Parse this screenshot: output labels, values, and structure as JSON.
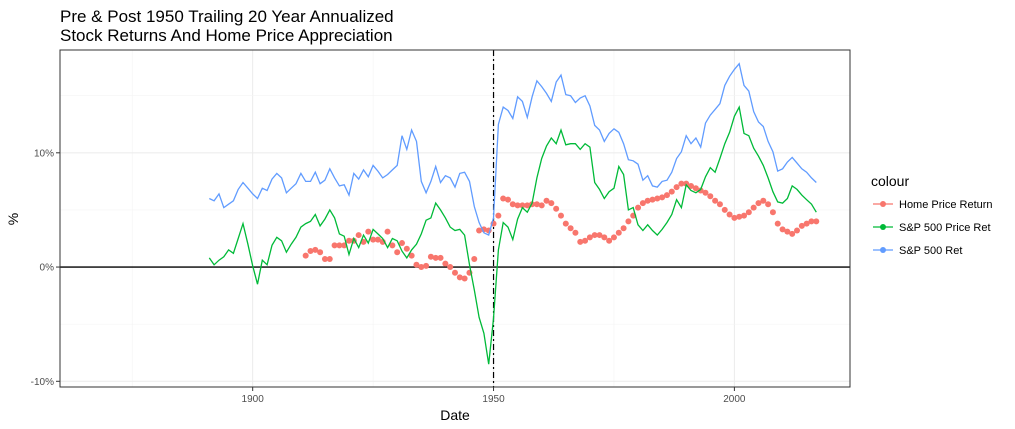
{
  "chart_data": {
    "type": "line",
    "title_line1": "Pre & Post 1950 Trailing 20 Year Annualized",
    "title_line2": "Stock Returns And Home Price Appreciation",
    "xlabel": "Date",
    "ylabel": "%",
    "xlim": [
      1860,
      2024
    ],
    "ylim": [
      -10.5,
      19
    ],
    "x_ticks": [
      1900,
      1950,
      2000
    ],
    "x_tick_labels": [
      "1900",
      "1950",
      "2000"
    ],
    "y_ticks": [
      -10,
      0,
      10
    ],
    "y_tick_labels": [
      "-10%",
      "0%",
      "10%"
    ],
    "grid": true,
    "legend_position": "right",
    "legend_title": "colour",
    "reference_lines": {
      "horizontal_y": 0,
      "vertical_dashed_x": 1950
    },
    "series": [
      {
        "name": "Home Price Return",
        "style": "points",
        "color": "#F8766D",
        "x": [
          1911,
          1912,
          1913,
          1914,
          1915,
          1916,
          1917,
          1918,
          1919,
          1920,
          1921,
          1922,
          1923,
          1924,
          1925,
          1926,
          1927,
          1928,
          1929,
          1930,
          1931,
          1932,
          1933,
          1934,
          1935,
          1936,
          1937,
          1938,
          1939,
          1940,
          1941,
          1942,
          1943,
          1944,
          1945,
          1946,
          1947,
          1948,
          1949,
          1950,
          1951,
          1952,
          1953,
          1954,
          1955,
          1956,
          1957,
          1958,
          1959,
          1960,
          1961,
          1962,
          1963,
          1964,
          1965,
          1966,
          1967,
          1968,
          1969,
          1970,
          1971,
          1972,
          1973,
          1974,
          1975,
          1976,
          1977,
          1978,
          1979,
          1980,
          1981,
          1982,
          1983,
          1984,
          1985,
          1986,
          1987,
          1988,
          1989,
          1990,
          1991,
          1992,
          1993,
          1994,
          1995,
          1996,
          1997,
          1998,
          1999,
          2000,
          2001,
          2002,
          2003,
          2004,
          2005,
          2006,
          2007,
          2008,
          2009,
          2010,
          2011,
          2012,
          2013,
          2014,
          2015,
          2016,
          2017
        ],
        "y": [
          1.0,
          1.4,
          1.5,
          1.3,
          0.7,
          0.7,
          1.9,
          1.9,
          1.9,
          2.3,
          2.3,
          2.8,
          2.2,
          3.1,
          2.4,
          2.4,
          2.2,
          3.1,
          1.9,
          1.3,
          2.1,
          1.6,
          1.0,
          0.2,
          0.0,
          0.1,
          0.9,
          0.8,
          0.8,
          0.3,
          0.0,
          -0.5,
          -0.9,
          -1.0,
          -0.5,
          0.7,
          3.2,
          3.3,
          3.2,
          3.8,
          4.5,
          6.0,
          5.9,
          5.5,
          5.4,
          5.4,
          5.4,
          5.5,
          5.5,
          5.4,
          5.8,
          5.6,
          5.1,
          4.5,
          3.8,
          3.4,
          3.0,
          2.2,
          2.3,
          2.6,
          2.8,
          2.8,
          2.6,
          2.3,
          2.6,
          3.0,
          3.4,
          4.0,
          4.5,
          5.2,
          5.6,
          5.8,
          5.9,
          6.0,
          6.1,
          6.3,
          6.6,
          7.0,
          7.3,
          7.3,
          7.1,
          6.9,
          6.7,
          6.5,
          6.2,
          5.8,
          5.5,
          5.0,
          4.6,
          4.3,
          4.4,
          4.5,
          4.8,
          5.2,
          5.6,
          5.8,
          5.5,
          4.8,
          3.8,
          3.3,
          3.1,
          2.9,
          3.2,
          3.6,
          3.8,
          4.0,
          4.0
        ]
      },
      {
        "name": "S&P 500 Price Ret",
        "style": "line",
        "color": "#00BA38",
        "x": [
          1891,
          1892,
          1893,
          1894,
          1895,
          1896,
          1897,
          1898,
          1899,
          1900,
          1901,
          1902,
          1903,
          1904,
          1905,
          1906,
          1907,
          1908,
          1909,
          1910,
          1911,
          1912,
          1913,
          1914,
          1915,
          1916,
          1917,
          1918,
          1919,
          1920,
          1921,
          1922,
          1923,
          1924,
          1925,
          1926,
          1927,
          1928,
          1929,
          1930,
          1931,
          1932,
          1933,
          1934,
          1935,
          1936,
          1937,
          1938,
          1939,
          1940,
          1941,
          1942,
          1943,
          1944,
          1945,
          1946,
          1947,
          1948,
          1949,
          1950,
          1951,
          1952,
          1953,
          1954,
          1955,
          1956,
          1957,
          1958,
          1959,
          1960,
          1961,
          1962,
          1963,
          1964,
          1965,
          1966,
          1967,
          1968,
          1969,
          1970,
          1971,
          1972,
          1973,
          1974,
          1975,
          1976,
          1977,
          1978,
          1979,
          1980,
          1981,
          1982,
          1983,
          1984,
          1985,
          1986,
          1987,
          1988,
          1989,
          1990,
          1991,
          1992,
          1993,
          1994,
          1995,
          1996,
          1997,
          1998,
          1999,
          2000,
          2001,
          2002,
          2003,
          2004,
          2005,
          2006,
          2007,
          2008,
          2009,
          2010,
          2011,
          2012,
          2013,
          2014,
          2015,
          2016,
          2017
        ],
        "y": [
          0.8,
          0.2,
          0.6,
          0.9,
          1.5,
          1.2,
          2.5,
          3.8,
          2.0,
          0.1,
          -1.5,
          0.6,
          0.2,
          1.9,
          2.6,
          2.3,
          1.3,
          2.0,
          2.6,
          3.5,
          3.8,
          4.0,
          4.6,
          3.6,
          4.2,
          5.0,
          4.3,
          2.9,
          2.7,
          1.1,
          2.5,
          1.7,
          2.8,
          2.1,
          3.3,
          2.9,
          2.5,
          1.7,
          2.5,
          2.3,
          1.4,
          0.8,
          1.5,
          2.0,
          2.9,
          4.1,
          4.3,
          5.6,
          5.0,
          4.3,
          3.5,
          3.2,
          3.3,
          2.8,
          0.2,
          -2.0,
          -4.4,
          -5.8,
          -8.5,
          -4.5,
          1.5,
          3.9,
          3.5,
          2.4,
          4.2,
          5.2,
          4.8,
          5.6,
          7.8,
          9.5,
          10.6,
          11.3,
          10.8,
          12.0,
          10.7,
          10.8,
          10.8,
          10.3,
          10.8,
          10.5,
          7.4,
          6.8,
          6.0,
          6.6,
          6.9,
          8.8,
          8.1,
          5.0,
          5.2,
          3.7,
          3.2,
          3.7,
          3.2,
          2.8,
          3.3,
          3.9,
          4.6,
          5.9,
          5.2,
          7.2,
          6.7,
          6.5,
          6.8,
          7.9,
          8.7,
          8.3,
          9.5,
          10.8,
          11.8,
          13.2,
          14.0,
          11.7,
          11.5,
          10.4,
          9.7,
          8.9,
          7.8,
          6.6,
          5.7,
          5.6,
          6.0,
          7.1,
          6.8,
          6.3,
          5.9,
          5.5,
          4.8
        ]
      },
      {
        "name": "S&P 500 Ret",
        "style": "line",
        "color": "#619CFF",
        "x": [
          1891,
          1892,
          1893,
          1894,
          1895,
          1896,
          1897,
          1898,
          1899,
          1900,
          1901,
          1902,
          1903,
          1904,
          1905,
          1906,
          1907,
          1908,
          1909,
          1910,
          1911,
          1912,
          1913,
          1914,
          1915,
          1916,
          1917,
          1918,
          1919,
          1920,
          1921,
          1922,
          1923,
          1924,
          1925,
          1926,
          1927,
          1928,
          1929,
          1930,
          1931,
          1932,
          1933,
          1934,
          1935,
          1936,
          1937,
          1938,
          1939,
          1940,
          1941,
          1942,
          1943,
          1944,
          1945,
          1946,
          1947,
          1948,
          1949,
          1950,
          1951,
          1952,
          1953,
          1954,
          1955,
          1956,
          1957,
          1958,
          1959,
          1960,
          1961,
          1962,
          1963,
          1964,
          1965,
          1966,
          1967,
          1968,
          1969,
          1970,
          1971,
          1972,
          1973,
          1974,
          1975,
          1976,
          1977,
          1978,
          1979,
          1980,
          1981,
          1982,
          1983,
          1984,
          1985,
          1986,
          1987,
          1988,
          1989,
          1990,
          1991,
          1992,
          1993,
          1994,
          1995,
          1996,
          1997,
          1998,
          1999,
          2000,
          2001,
          2002,
          2003,
          2004,
          2005,
          2006,
          2007,
          2008,
          2009,
          2010,
          2011,
          2012,
          2013,
          2014,
          2015,
          2016,
          2017
        ],
        "y": [
          6.0,
          5.8,
          6.4,
          5.2,
          5.5,
          5.8,
          6.8,
          7.4,
          6.9,
          6.4,
          6.0,
          6.9,
          6.7,
          7.7,
          8.2,
          7.8,
          6.5,
          6.9,
          7.3,
          8.2,
          7.5,
          7.5,
          8.3,
          7.3,
          7.6,
          8.6,
          7.8,
          7.1,
          7.2,
          6.3,
          8.2,
          7.7,
          8.5,
          7.9,
          8.9,
          8.4,
          7.8,
          8.1,
          8.5,
          8.9,
          11.5,
          10.3,
          12.0,
          11.0,
          7.5,
          6.5,
          7.5,
          8.8,
          7.4,
          8.0,
          7.8,
          7.0,
          8.2,
          8.3,
          7.5,
          5.3,
          3.9,
          3.0,
          2.8,
          4.3,
          12.5,
          14.0,
          13.7,
          13.0,
          14.9,
          14.5,
          13.1,
          14.9,
          16.3,
          15.8,
          15.2,
          14.5,
          16.2,
          16.8,
          15.1,
          15.0,
          14.4,
          14.8,
          15.0,
          14.1,
          12.4,
          12.0,
          11.0,
          11.7,
          12.1,
          11.8,
          10.8,
          9.4,
          9.3,
          9.0,
          7.6,
          8.0,
          7.1,
          7.0,
          7.5,
          7.6,
          8.3,
          9.5,
          10.1,
          11.5,
          10.8,
          11.3,
          10.5,
          12.6,
          13.3,
          13.8,
          14.3,
          15.9,
          16.7,
          17.3,
          17.8,
          15.9,
          15.4,
          13.6,
          12.7,
          12.3,
          11.0,
          10.1,
          8.4,
          8.6,
          9.2,
          9.6,
          9.1,
          8.6,
          8.3,
          7.8,
          7.4
        ]
      }
    ]
  }
}
